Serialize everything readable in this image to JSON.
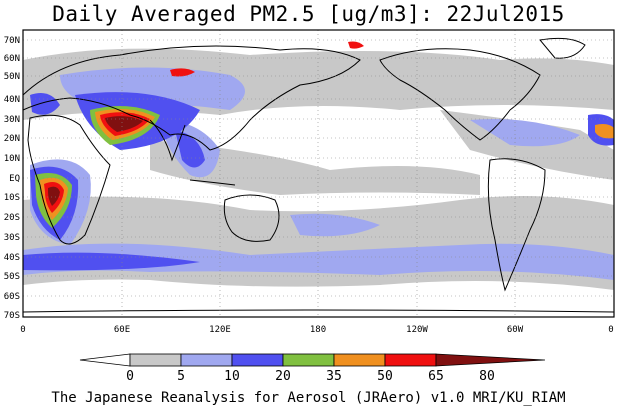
{
  "title": "Daily Averaged PM2.5 [ug/m3]: 22Jul2015",
  "footer": "The Japanese Reanalysis for Aerosol (JRAero) v1.0 MRI/KU_RIAM",
  "map": {
    "lat_labels": [
      "70N",
      "60N",
      "50N",
      "40N",
      "30N",
      "20N",
      "10N",
      "EQ",
      "10S",
      "20S",
      "30S",
      "40S",
      "50S",
      "60S",
      "70S"
    ],
    "lon_labels": [
      "0",
      "60E",
      "120E",
      "180",
      "120W",
      "60W",
      "0"
    ]
  },
  "colorbar": {
    "ticks": [
      "0",
      "5",
      "10",
      "20",
      "35",
      "50",
      "65",
      "80"
    ],
    "colors": [
      "#ffffff",
      "#c8c8c8",
      "#a0a8f0",
      "#5050f0",
      "#80c040",
      "#f09020",
      "#f01010",
      "#801010"
    ]
  }
}
